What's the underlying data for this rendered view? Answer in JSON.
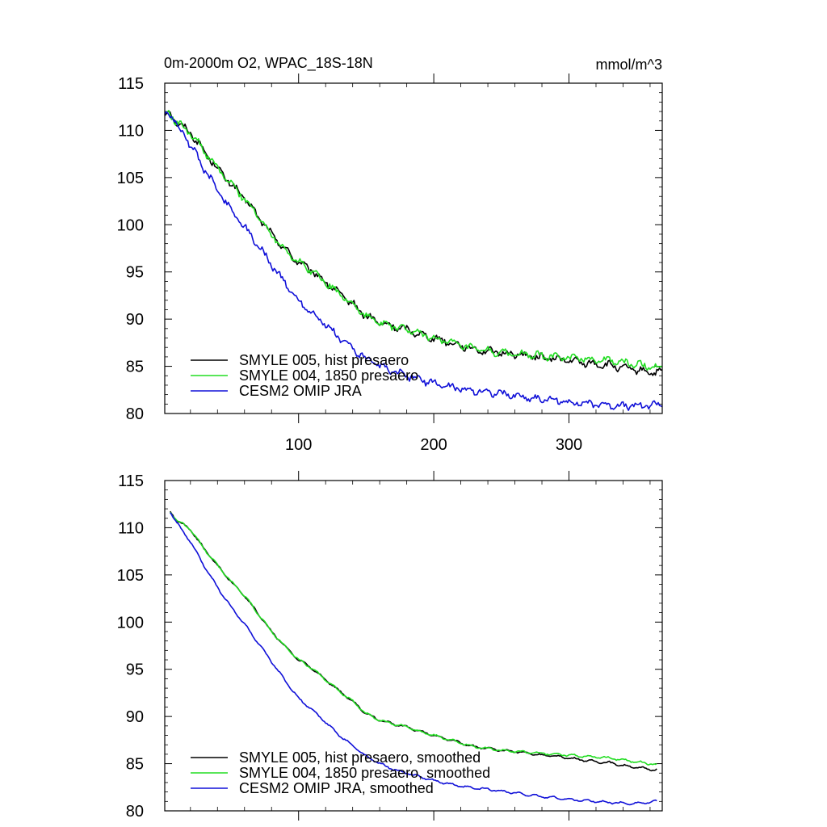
{
  "chart_data": [
    {
      "type": "line",
      "title": "0m-2000m O2, WPAC_18S-18N",
      "units": "mmol/m^3",
      "xlabel": "",
      "ylabel": "",
      "xlim": [
        1,
        369
      ],
      "ylim": [
        80,
        115
      ],
      "x_ticks": [
        100,
        200,
        300
      ],
      "x_tick_labels": [
        "100",
        "200",
        "300"
      ],
      "y_ticks": [
        80,
        85,
        90,
        95,
        100,
        105,
        110,
        115
      ],
      "y_tick_labels": [
        "80",
        "85",
        "90",
        "95",
        "100",
        "105",
        "110",
        "115"
      ],
      "legend_position": "bottom-left",
      "series": [
        {
          "name": "SMYLE 005, hist presaero",
          "color": "#000000",
          "x": [
            1,
            4,
            10,
            20,
            30,
            40,
            50,
            60,
            70,
            80,
            90,
            100,
            110,
            120,
            130,
            140,
            150,
            160,
            170,
            180,
            190,
            200,
            210,
            220,
            230,
            240,
            250,
            260,
            270,
            280,
            290,
            300,
            310,
            320,
            330,
            340,
            350,
            360,
            369
          ],
          "y": [
            111.5,
            112.0,
            110.8,
            109.8,
            107.8,
            106.0,
            104.3,
            102.8,
            100.9,
            99.0,
            97.4,
            96.0,
            95.1,
            93.9,
            92.7,
            91.6,
            90.3,
            89.6,
            89.2,
            88.9,
            88.4,
            88.0,
            87.6,
            87.2,
            86.8,
            86.6,
            86.4,
            86.3,
            86.1,
            85.9,
            85.8,
            85.6,
            85.4,
            85.2,
            85.1,
            84.8,
            84.6,
            84.4,
            84.3
          ]
        },
        {
          "name": "SMYLE 004, 1850 presaero",
          "color": "#22dd22",
          "x": [
            1,
            4,
            10,
            20,
            30,
            40,
            50,
            60,
            70,
            80,
            90,
            100,
            110,
            120,
            130,
            140,
            150,
            160,
            170,
            180,
            190,
            200,
            210,
            220,
            230,
            240,
            250,
            260,
            270,
            280,
            290,
            300,
            310,
            320,
            330,
            340,
            350,
            360,
            369
          ],
          "y": [
            111.5,
            112.0,
            110.8,
            109.8,
            107.8,
            106.0,
            104.3,
            102.8,
            100.9,
            99.0,
            97.4,
            96.0,
            95.1,
            93.9,
            92.7,
            91.6,
            90.3,
            89.6,
            89.2,
            88.9,
            88.4,
            88.0,
            87.6,
            87.2,
            86.8,
            86.6,
            86.4,
            86.3,
            86.2,
            86.1,
            86.0,
            85.9,
            85.8,
            85.7,
            85.6,
            85.4,
            85.2,
            85.0,
            84.9
          ]
        },
        {
          "name": "CESM2 OMIP JRA",
          "color": "#1010d8",
          "x": [
            1,
            4,
            10,
            20,
            30,
            40,
            50,
            60,
            70,
            80,
            90,
            100,
            110,
            120,
            130,
            140,
            150,
            160,
            170,
            180,
            190,
            200,
            210,
            220,
            230,
            240,
            250,
            260,
            270,
            280,
            290,
            300,
            310,
            320,
            330,
            340,
            350,
            360,
            369
          ],
          "y": [
            111.5,
            112.0,
            110.5,
            108.5,
            106.0,
            103.7,
            101.6,
            99.8,
            97.8,
            95.8,
            93.8,
            91.9,
            90.7,
            89.4,
            88.0,
            86.9,
            85.8,
            85.0,
            84.4,
            84.0,
            83.6,
            83.2,
            82.9,
            82.6,
            82.4,
            82.3,
            82.1,
            81.9,
            81.7,
            81.5,
            81.4,
            81.2,
            81.1,
            81.0,
            80.9,
            80.8,
            80.8,
            80.9,
            81.0
          ]
        }
      ]
    },
    {
      "type": "line",
      "title": "",
      "xlabel": "",
      "ylabel": "",
      "xlim": [
        1,
        369
      ],
      "ylim": [
        80,
        115
      ],
      "x_ticks": [
        100,
        200,
        300
      ],
      "x_tick_labels": [],
      "y_ticks": [
        80,
        85,
        90,
        95,
        100,
        105,
        110,
        115
      ],
      "y_tick_labels": [
        "80",
        "85",
        "90",
        "95",
        "100",
        "105",
        "110",
        "115"
      ],
      "legend_position": "bottom-left",
      "series": [
        {
          "name": "SMYLE 005, hist presaero, smoothed",
          "color": "#000000",
          "x": [
            5,
            10,
            20,
            30,
            40,
            50,
            60,
            70,
            80,
            90,
            100,
            110,
            120,
            130,
            140,
            150,
            160,
            170,
            180,
            190,
            200,
            210,
            220,
            230,
            240,
            250,
            260,
            270,
            280,
            290,
            300,
            310,
            320,
            330,
            340,
            350,
            360,
            365
          ],
          "y": [
            111.7,
            110.8,
            109.8,
            107.8,
            106.0,
            104.3,
            102.8,
            100.9,
            99.0,
            97.4,
            96.0,
            95.1,
            93.9,
            92.7,
            91.6,
            90.3,
            89.6,
            89.2,
            88.9,
            88.4,
            88.0,
            87.6,
            87.2,
            86.8,
            86.6,
            86.4,
            86.3,
            86.1,
            85.9,
            85.8,
            85.6,
            85.4,
            85.2,
            85.1,
            84.8,
            84.6,
            84.4,
            84.4
          ]
        },
        {
          "name": "SMYLE 004, 1850 presaero, smoothed",
          "color": "#22dd22",
          "x": [
            5,
            10,
            20,
            30,
            40,
            50,
            60,
            70,
            80,
            90,
            100,
            110,
            120,
            130,
            140,
            150,
            160,
            170,
            180,
            190,
            200,
            210,
            220,
            230,
            240,
            250,
            260,
            270,
            280,
            290,
            300,
            310,
            320,
            330,
            340,
            350,
            360,
            365
          ],
          "y": [
            111.7,
            110.8,
            109.8,
            107.8,
            106.0,
            104.3,
            102.8,
            100.9,
            99.0,
            97.4,
            96.0,
            95.1,
            93.9,
            92.7,
            91.6,
            90.3,
            89.6,
            89.2,
            88.9,
            88.4,
            88.0,
            87.6,
            87.2,
            86.8,
            86.6,
            86.4,
            86.3,
            86.2,
            86.1,
            86.0,
            85.9,
            85.8,
            85.7,
            85.6,
            85.4,
            85.2,
            85.0,
            84.9
          ]
        },
        {
          "name": "CESM2 OMIP JRA, smoothed",
          "color": "#1010d8",
          "x": [
            5,
            10,
            20,
            30,
            40,
            50,
            60,
            70,
            80,
            90,
            100,
            110,
            120,
            130,
            140,
            150,
            160,
            170,
            180,
            190,
            200,
            210,
            220,
            230,
            240,
            250,
            260,
            270,
            280,
            290,
            300,
            310,
            320,
            330,
            340,
            350,
            360,
            365
          ],
          "y": [
            111.7,
            110.5,
            108.5,
            106.0,
            103.7,
            101.6,
            99.8,
            97.8,
            95.8,
            93.8,
            91.9,
            90.7,
            89.4,
            88.0,
            86.9,
            85.8,
            85.0,
            84.4,
            84.0,
            83.6,
            83.2,
            82.9,
            82.6,
            82.4,
            82.3,
            82.1,
            81.9,
            81.7,
            81.5,
            81.4,
            81.2,
            81.1,
            81.0,
            80.9,
            80.8,
            80.8,
            80.9,
            81.0
          ]
        }
      ]
    }
  ]
}
